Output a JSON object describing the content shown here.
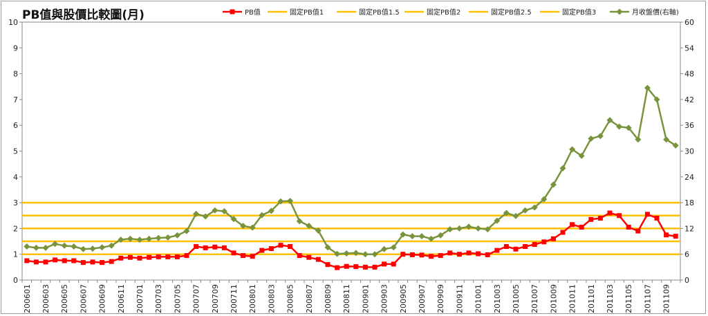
{
  "chart_data": {
    "type": "line",
    "title": "PB值與股價比較圖(月)",
    "y_left": {
      "min": 0,
      "max": 10,
      "ticks": [
        "0",
        "1",
        "2",
        "3",
        "4",
        "5",
        "6",
        "7",
        "8",
        "9",
        "10"
      ]
    },
    "y_right": {
      "min": 0,
      "max": 60,
      "ticks": [
        "0",
        "6",
        "12",
        "18",
        "24",
        "30",
        "36",
        "42",
        "48",
        "54",
        "60"
      ]
    },
    "x_tick_labels": [
      "200601",
      "200603",
      "200605",
      "200607",
      "200609",
      "200611",
      "200701",
      "200703",
      "200705",
      "200707",
      "200709",
      "200711",
      "200801",
      "200803",
      "200805",
      "200807",
      "200809",
      "200811",
      "200901",
      "200903",
      "200905",
      "200907",
      "200909",
      "200911",
      "201001",
      "201003",
      "201005",
      "201007",
      "201009",
      "201011",
      "201101",
      "201103",
      "201105",
      "201107",
      "201109"
    ],
    "categories": [
      "200601",
      "200602",
      "200603",
      "200604",
      "200605",
      "200606",
      "200607",
      "200608",
      "200609",
      "200610",
      "200611",
      "200612",
      "200701",
      "200702",
      "200703",
      "200704",
      "200705",
      "200706",
      "200707",
      "200708",
      "200709",
      "200710",
      "200711",
      "200712",
      "200801",
      "200802",
      "200803",
      "200804",
      "200805",
      "200806",
      "200807",
      "200808",
      "200809",
      "200810",
      "200811",
      "200812",
      "200901",
      "200902",
      "200903",
      "200904",
      "200905",
      "200906",
      "200907",
      "200908",
      "200909",
      "200910",
      "200911",
      "200912",
      "201001",
      "201002",
      "201003",
      "201004",
      "201005",
      "201006",
      "201007",
      "201008",
      "201009",
      "201010",
      "201011",
      "201012",
      "201101",
      "201102",
      "201103",
      "201104",
      "201105",
      "201106",
      "201107",
      "201108",
      "201109",
      "201110"
    ],
    "grid": false,
    "legend_position": "top",
    "series": [
      {
        "name": "PB值",
        "axis": "left",
        "color": "#ff0000",
        "marker": "square",
        "values": [
          0.75,
          0.7,
          0.7,
          0.78,
          0.75,
          0.75,
          0.68,
          0.7,
          0.68,
          0.72,
          0.85,
          0.88,
          0.85,
          0.88,
          0.9,
          0.9,
          0.9,
          0.95,
          1.3,
          1.25,
          1.28,
          1.25,
          1.05,
          0.95,
          0.92,
          1.15,
          1.22,
          1.35,
          1.3,
          0.95,
          0.88,
          0.8,
          0.6,
          0.48,
          0.53,
          0.52,
          0.5,
          0.5,
          0.62,
          0.62,
          1.0,
          0.98,
          0.97,
          0.92,
          0.95,
          1.05,
          1.0,
          1.05,
          1.02,
          0.98,
          1.15,
          1.3,
          1.2,
          1.3,
          1.38,
          1.48,
          1.6,
          1.85,
          2.15,
          2.05,
          2.35,
          2.4,
          2.6,
          2.5,
          2.05,
          1.9,
          2.55,
          2.4,
          1.75,
          1.7
        ]
      },
      {
        "name": "固定PB值1",
        "axis": "left",
        "color": "#ffc000",
        "constant": 1
      },
      {
        "name": "固定PB值1.5",
        "axis": "left",
        "color": "#ffc000",
        "constant": 1.5
      },
      {
        "name": "固定PB值2",
        "axis": "left",
        "color": "#ffc000",
        "constant": 2
      },
      {
        "name": "固定PB值2.5",
        "axis": "left",
        "color": "#ffc000",
        "constant": 2.5
      },
      {
        "name": "固定PB值3",
        "axis": "left",
        "color": "#ffc000",
        "constant": 3
      },
      {
        "name": "月收盤價(右軸)",
        "axis": "right",
        "color": "#77933c",
        "marker": "diamond",
        "values": [
          7.8,
          7.5,
          7.5,
          8.4,
          8.0,
          7.8,
          7.2,
          7.3,
          7.6,
          8.0,
          9.4,
          9.6,
          9.4,
          9.6,
          9.8,
          9.9,
          10.4,
          11.4,
          15.4,
          14.8,
          16.2,
          16.0,
          14.2,
          12.6,
          12.2,
          15.1,
          16.1,
          18.3,
          18.4,
          13.7,
          12.6,
          11.5,
          7.6,
          6.1,
          6.2,
          6.3,
          6.0,
          6.0,
          7.2,
          7.6,
          10.6,
          10.2,
          10.2,
          9.6,
          10.4,
          11.8,
          12.0,
          12.4,
          12.0,
          11.8,
          13.8,
          15.6,
          14.9,
          16.2,
          16.9,
          18.8,
          22.2,
          26.0,
          30.4,
          28.9,
          32.9,
          33.5,
          37.2,
          35.7,
          35.4,
          32.7,
          44.7,
          42.0,
          32.7,
          31.3
        ]
      }
    ]
  }
}
